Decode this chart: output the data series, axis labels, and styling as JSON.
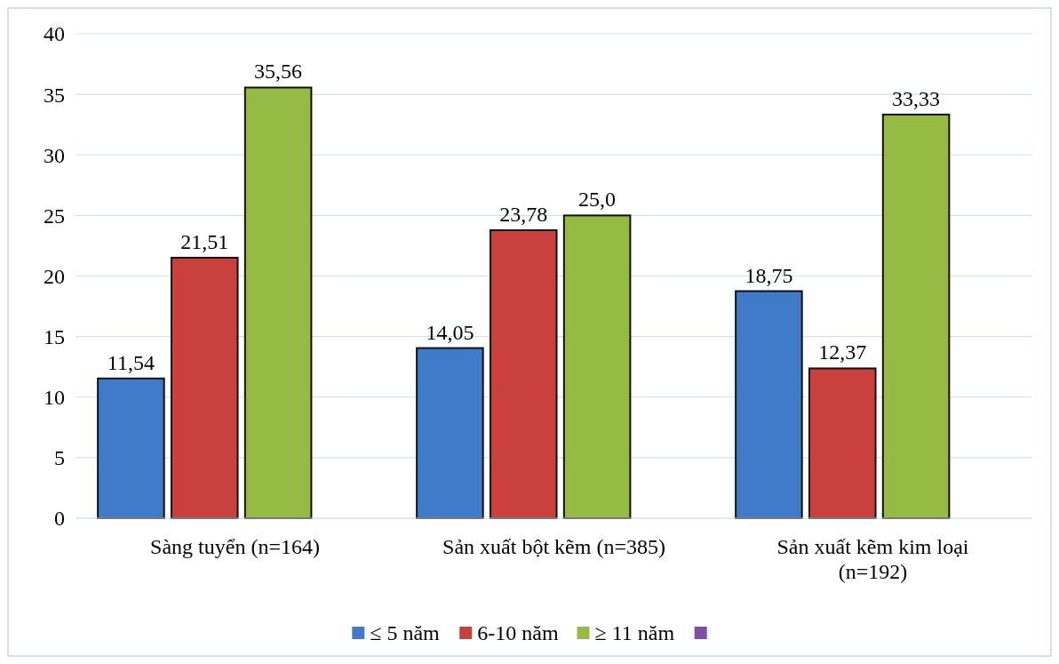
{
  "chart_data": {
    "type": "bar",
    "categories": [
      "Sàng tuyển (n=164)",
      "Sản xuất bột kẽm (n=385)",
      "Sản xuất kẽm kim loại (n=192)"
    ],
    "series": [
      {
        "name": "≤ 5 năm",
        "color": "#3f7bc9",
        "values": [
          11.54,
          14.05,
          18.75
        ],
        "value_labels": [
          "11,54",
          "14,05",
          "18,75"
        ]
      },
      {
        "name": "6-10 năm",
        "color": "#c9403c",
        "values": [
          21.51,
          23.78,
          12.37
        ],
        "value_labels": [
          "21,51",
          "23,78",
          "12,37"
        ]
      },
      {
        "name": "≥ 11 năm",
        "color": "#95bb45",
        "values": [
          35.56,
          25.0,
          33.33
        ],
        "value_labels": [
          "35,56",
          "25,0",
          "33,33"
        ]
      },
      {
        "color": "#7f4fa3",
        "values": [
          null,
          null,
          null
        ]
      }
    ],
    "ylim": [
      0,
      40
    ],
    "yticks": [
      0,
      5,
      10,
      15,
      20,
      25,
      30,
      35,
      40
    ],
    "grid": "y",
    "legend": "bottom"
  }
}
